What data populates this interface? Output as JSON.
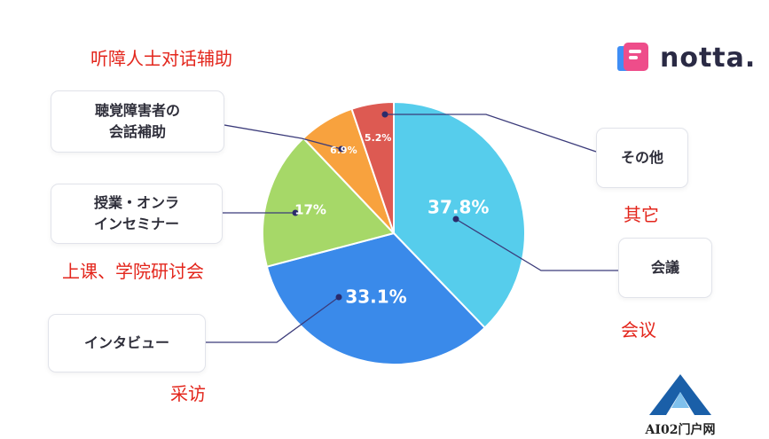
{
  "chart_data": {
    "type": "pie",
    "slices": [
      {
        "label": "会議",
        "value": 37.8,
        "value_label": "37.8%",
        "color": "#56cdec"
      },
      {
        "label": "インタビュー",
        "value": 33.1,
        "value_label": "33.1%",
        "color": "#3a8aea"
      },
      {
        "label": "授業・オンラ\nインセミナー",
        "value": 17,
        "value_label": "17%",
        "color": "#a6d868"
      },
      {
        "label": "聴覚障害者の\n会話補助",
        "value": 6.9,
        "value_label": "6.9%",
        "color": "#f8a23e"
      },
      {
        "label": "その他",
        "value": 5.2,
        "value_label": "5.2%",
        "color": "#dd5a52"
      }
    ]
  },
  "annotations": {
    "hearing": "听障人士对话辅助",
    "other": "其它",
    "class": "上课、学院研讨会",
    "meeting": "会议",
    "interview": "采访"
  },
  "logo": {
    "text": "notta."
  },
  "watermark": {
    "text": "AI02门户网"
  },
  "colors": {
    "annotation": "#e3261c",
    "leader": "#3b3b7a",
    "dot": "#2b2b6b"
  }
}
